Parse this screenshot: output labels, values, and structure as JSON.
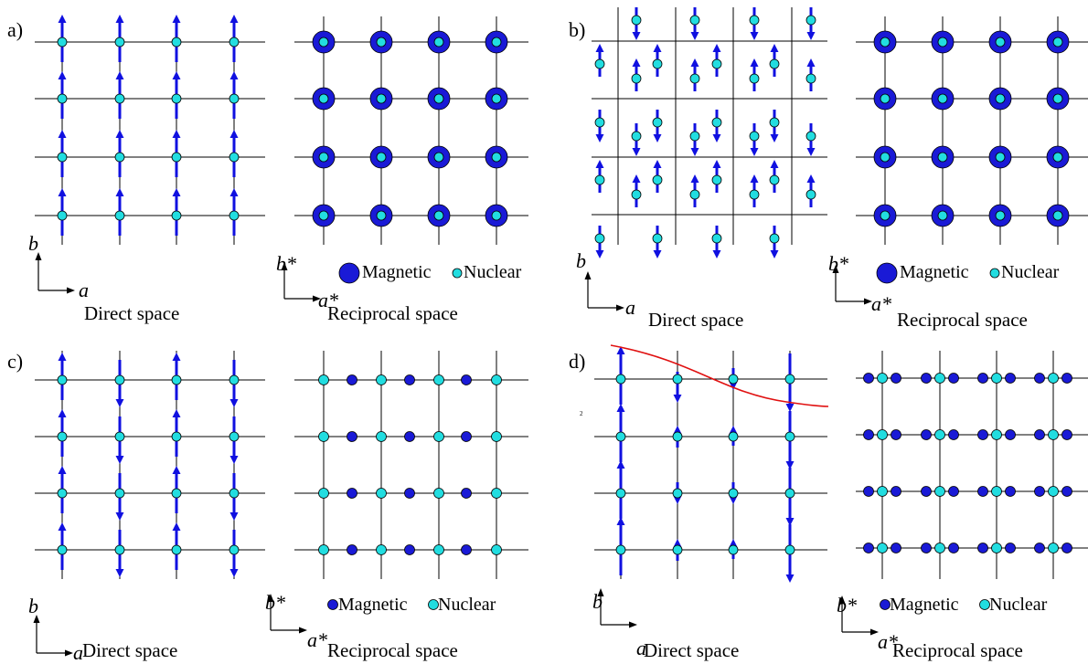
{
  "colors": {
    "grid": "#000000",
    "spin": "#1010e0",
    "magnetic": "#1a1ad6",
    "nuclear": "#22dde0",
    "curve": "#e01010"
  },
  "panels": {
    "a": {
      "letter": "a)",
      "direct_caption": "Direct space",
      "reciprocal_caption": "Reciprocal space",
      "direct_axes": {
        "y": "b",
        "x": "a"
      },
      "reciprocal_axes": {
        "y": "b*",
        "x": "a*"
      },
      "legend": {
        "magnetic": "Magnetic",
        "nuclear": "Nuclear"
      }
    },
    "b": {
      "letter": "b)",
      "direct_caption": "Direct space",
      "reciprocal_caption": "Reciprocal space",
      "direct_axes": {
        "y": "b",
        "x": "a"
      },
      "reciprocal_axes": {
        "y": "b*",
        "x": "a*"
      },
      "legend": {
        "magnetic": "Magnetic",
        "nuclear": "Nuclear"
      }
    },
    "c": {
      "letter": "c)",
      "direct_caption": "Direct space",
      "reciprocal_caption": "Reciprocal space",
      "direct_axes": {
        "y": "b",
        "x": "a"
      },
      "reciprocal_axes": {
        "y": "b*",
        "x": "a*"
      },
      "legend": {
        "magnetic": "Magnetic",
        "nuclear": "Nuclear"
      }
    },
    "d": {
      "letter": "d)",
      "small_mark": "2",
      "direct_caption": "Direct space",
      "reciprocal_caption": "Reciprocal space",
      "direct_axes": {
        "y": "b",
        "x": "a"
      },
      "reciprocal_axes": {
        "y": "b*",
        "x": "a*"
      },
      "legend": {
        "magnetic": "Magnetic",
        "nuclear": "Nuclear"
      }
    }
  }
}
